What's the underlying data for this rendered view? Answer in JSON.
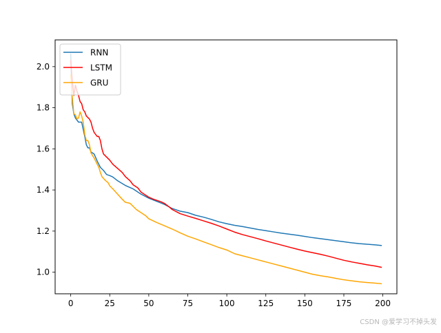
{
  "chart_data": {
    "type": "line",
    "title": "",
    "xlabel": "",
    "ylabel": "",
    "xlim": [
      -10,
      209
    ],
    "ylim": [
      0.895,
      2.13
    ],
    "xticks": [
      0,
      25,
      50,
      75,
      100,
      125,
      150,
      175,
      200
    ],
    "yticks": [
      1.0,
      1.2,
      1.4,
      1.6,
      1.8,
      2.0
    ],
    "xtick_labels": [
      "0",
      "25",
      "50",
      "75",
      "100",
      "125",
      "150",
      "175",
      "200"
    ],
    "ytick_labels": [
      "1.0",
      "1.2",
      "1.4",
      "1.6",
      "1.8",
      "2.0"
    ],
    "legend_position": "upper left",
    "grid": false,
    "series": [
      {
        "name": "RNN",
        "color": "#1f77b4",
        "points": [
          [
            0,
            2.06
          ],
          [
            1,
            1.82
          ],
          [
            2,
            1.77
          ],
          [
            3,
            1.75
          ],
          [
            5,
            1.73
          ],
          [
            7,
            1.73
          ],
          [
            9,
            1.66
          ],
          [
            10,
            1.62
          ],
          [
            11,
            1.605
          ],
          [
            12,
            1.605
          ],
          [
            13,
            1.585
          ],
          [
            15,
            1.575
          ],
          [
            17,
            1.54
          ],
          [
            19,
            1.51
          ],
          [
            21,
            1.495
          ],
          [
            23,
            1.475
          ],
          [
            25,
            1.47
          ],
          [
            27,
            1.463
          ],
          [
            30,
            1.445
          ],
          [
            35,
            1.422
          ],
          [
            40,
            1.405
          ],
          [
            45,
            1.38
          ],
          [
            50,
            1.36
          ],
          [
            55,
            1.345
          ],
          [
            60,
            1.33
          ],
          [
            65,
            1.31
          ],
          [
            70,
            1.297
          ],
          [
            75,
            1.29
          ],
          [
            80,
            1.277
          ],
          [
            85,
            1.268
          ],
          [
            90,
            1.257
          ],
          [
            95,
            1.245
          ],
          [
            100,
            1.236
          ],
          [
            105,
            1.228
          ],
          [
            110,
            1.222
          ],
          [
            115,
            1.215
          ],
          [
            120,
            1.208
          ],
          [
            125,
            1.202
          ],
          [
            130,
            1.196
          ],
          [
            135,
            1.19
          ],
          [
            140,
            1.185
          ],
          [
            145,
            1.18
          ],
          [
            150,
            1.174
          ],
          [
            155,
            1.168
          ],
          [
            160,
            1.163
          ],
          [
            165,
            1.158
          ],
          [
            170,
            1.153
          ],
          [
            175,
            1.148
          ],
          [
            180,
            1.143
          ],
          [
            185,
            1.139
          ],
          [
            190,
            1.136
          ],
          [
            195,
            1.133
          ],
          [
            199,
            1.13
          ]
        ]
      },
      {
        "name": "LSTM",
        "color": "#ff0000",
        "points": [
          [
            0,
            2.03
          ],
          [
            1,
            1.93
          ],
          [
            2,
            1.86
          ],
          [
            3,
            1.91
          ],
          [
            4,
            1.88
          ],
          [
            5,
            1.86
          ],
          [
            6,
            1.83
          ],
          [
            7,
            1.82
          ],
          [
            8,
            1.79
          ],
          [
            9,
            1.78
          ],
          [
            10,
            1.76
          ],
          [
            12,
            1.745
          ],
          [
            13,
            1.73
          ],
          [
            14,
            1.7
          ],
          [
            15,
            1.68
          ],
          [
            16,
            1.67
          ],
          [
            17,
            1.66
          ],
          [
            18,
            1.66
          ],
          [
            19,
            1.64
          ],
          [
            20,
            1.6
          ],
          [
            21,
            1.575
          ],
          [
            23,
            1.56
          ],
          [
            25,
            1.545
          ],
          [
            27,
            1.525
          ],
          [
            30,
            1.505
          ],
          [
            33,
            1.485
          ],
          [
            35,
            1.465
          ],
          [
            38,
            1.445
          ],
          [
            40,
            1.425
          ],
          [
            43,
            1.41
          ],
          [
            45,
            1.39
          ],
          [
            48,
            1.375
          ],
          [
            50,
            1.365
          ],
          [
            53,
            1.355
          ],
          [
            55,
            1.35
          ],
          [
            58,
            1.342
          ],
          [
            60,
            1.335
          ],
          [
            63,
            1.318
          ],
          [
            65,
            1.305
          ],
          [
            68,
            1.293
          ],
          [
            70,
            1.285
          ],
          [
            75,
            1.273
          ],
          [
            80,
            1.262
          ],
          [
            85,
            1.25
          ],
          [
            90,
            1.238
          ],
          [
            95,
            1.225
          ],
          [
            100,
            1.21
          ],
          [
            105,
            1.195
          ],
          [
            110,
            1.183
          ],
          [
            115,
            1.173
          ],
          [
            120,
            1.163
          ],
          [
            125,
            1.152
          ],
          [
            130,
            1.142
          ],
          [
            135,
            1.132
          ],
          [
            140,
            1.122
          ],
          [
            145,
            1.112
          ],
          [
            150,
            1.103
          ],
          [
            155,
            1.095
          ],
          [
            160,
            1.087
          ],
          [
            165,
            1.078
          ],
          [
            170,
            1.068
          ],
          [
            175,
            1.058
          ],
          [
            180,
            1.05
          ],
          [
            185,
            1.043
          ],
          [
            190,
            1.036
          ],
          [
            195,
            1.03
          ],
          [
            199,
            1.024
          ]
        ]
      },
      {
        "name": "GRU",
        "color": "#ffa500",
        "points": [
          [
            0,
            1.96
          ],
          [
            1,
            1.85
          ],
          [
            2,
            1.77
          ],
          [
            3,
            1.765
          ],
          [
            4,
            1.745
          ],
          [
            5,
            1.75
          ],
          [
            6,
            1.78
          ],
          [
            7,
            1.76
          ],
          [
            8,
            1.73
          ],
          [
            9,
            1.67
          ],
          [
            10,
            1.64
          ],
          [
            11,
            1.64
          ],
          [
            12,
            1.62
          ],
          [
            13,
            1.58
          ],
          [
            15,
            1.555
          ],
          [
            17,
            1.525
          ],
          [
            18,
            1.51
          ],
          [
            19,
            1.485
          ],
          [
            20,
            1.465
          ],
          [
            22,
            1.448
          ],
          [
            24,
            1.435
          ],
          [
            25,
            1.42
          ],
          [
            27,
            1.405
          ],
          [
            30,
            1.38
          ],
          [
            33,
            1.355
          ],
          [
            35,
            1.34
          ],
          [
            38,
            1.335
          ],
          [
            40,
            1.32
          ],
          [
            42,
            1.305
          ],
          [
            45,
            1.29
          ],
          [
            48,
            1.275
          ],
          [
            50,
            1.26
          ],
          [
            55,
            1.242
          ],
          [
            60,
            1.226
          ],
          [
            65,
            1.21
          ],
          [
            70,
            1.192
          ],
          [
            75,
            1.175
          ],
          [
            80,
            1.162
          ],
          [
            85,
            1.148
          ],
          [
            90,
            1.134
          ],
          [
            95,
            1.12
          ],
          [
            100,
            1.108
          ],
          [
            105,
            1.09
          ],
          [
            110,
            1.08
          ],
          [
            115,
            1.07
          ],
          [
            120,
            1.06
          ],
          [
            125,
            1.05
          ],
          [
            130,
            1.04
          ],
          [
            135,
            1.03
          ],
          [
            140,
            1.02
          ],
          [
            145,
            1.01
          ],
          [
            150,
            1.0
          ],
          [
            155,
            0.99
          ],
          [
            160,
            0.983
          ],
          [
            165,
            0.977
          ],
          [
            170,
            0.97
          ],
          [
            175,
            0.963
          ],
          [
            180,
            0.958
          ],
          [
            185,
            0.953
          ],
          [
            190,
            0.95
          ],
          [
            195,
            0.947
          ],
          [
            199,
            0.944
          ]
        ]
      }
    ]
  },
  "watermark": "CSDN @爱学习不掉头发"
}
